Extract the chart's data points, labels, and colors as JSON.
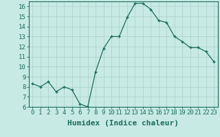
{
  "x": [
    0,
    1,
    2,
    3,
    4,
    5,
    6,
    7,
    8,
    9,
    10,
    11,
    12,
    13,
    14,
    15,
    16,
    17,
    18,
    19,
    20,
    21,
    22,
    23
  ],
  "y": [
    8.3,
    8.0,
    8.5,
    7.5,
    8.0,
    7.7,
    6.3,
    6.0,
    9.5,
    11.8,
    13.0,
    13.0,
    14.9,
    16.3,
    16.3,
    15.7,
    14.6,
    14.4,
    13.0,
    12.5,
    11.9,
    11.9,
    11.5,
    10.5
  ],
  "line_color": "#1a6b5a",
  "marker": "+",
  "bg_color": "#c8eae4",
  "grid_color": "#aed4cc",
  "xlabel": "Humidex (Indice chaleur)",
  "ylim": [
    6,
    16.5
  ],
  "xlim": [
    -0.5,
    23.5
  ],
  "yticks": [
    6,
    7,
    8,
    9,
    10,
    11,
    12,
    13,
    14,
    15,
    16
  ],
  "xticks": [
    0,
    1,
    2,
    3,
    4,
    5,
    6,
    7,
    8,
    9,
    10,
    11,
    12,
    13,
    14,
    15,
    16,
    17,
    18,
    19,
    20,
    21,
    22,
    23
  ],
  "xlabel_fontsize": 8,
  "tick_fontsize": 6.5,
  "axis_color": "#1a6b5a",
  "title_color": "#1a6b5a"
}
